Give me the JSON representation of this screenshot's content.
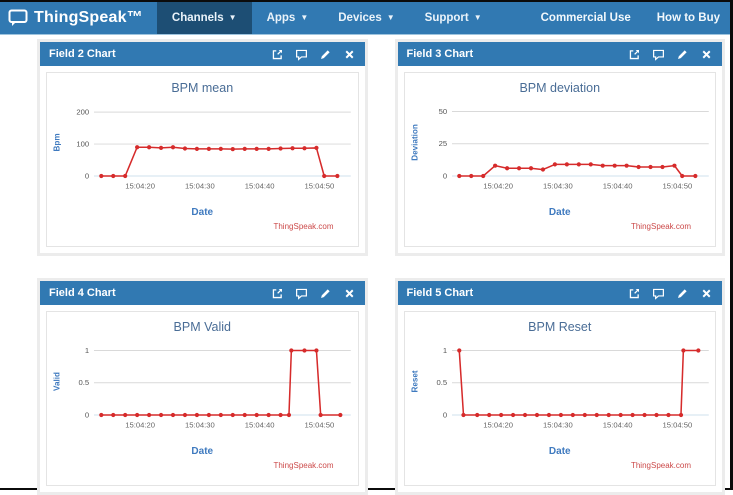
{
  "navbar": {
    "brand": "ThingSpeak™",
    "items": [
      {
        "label": "Channels",
        "active": true
      },
      {
        "label": "Apps",
        "active": false
      },
      {
        "label": "Devices",
        "active": false
      },
      {
        "label": "Support",
        "active": false
      }
    ],
    "right_items": [
      {
        "label": "Commercial Use"
      },
      {
        "label": "How to Buy"
      }
    ]
  },
  "panels": [
    {
      "header": "Field 2 Chart"
    },
    {
      "header": "Field 3 Chart"
    },
    {
      "header": "Field 4 Chart"
    },
    {
      "header": "Field 5 Chart"
    }
  ],
  "colors": {
    "navbar_bg": "#3179b2",
    "navbar_active_bg": "#1d4e74",
    "panel_header_bg": "#3179b2",
    "series_red": "#d62b2b",
    "title_blue": "#4a6d96",
    "axis_label_blue": "#3f7abf",
    "gridline_gray": "#d9d9d9"
  },
  "chart_data": [
    {
      "type": "line",
      "title": "BPM mean",
      "xlabel": "Date",
      "ylabel": "Bpm",
      "watermark": "ThingSpeak.com",
      "color": "#d62b2b",
      "xlim": [
        12.6,
        54.6
      ],
      "ylim": [
        0,
        210
      ],
      "y_ticks": [
        {
          "v": 0,
          "label": "0"
        },
        {
          "v": 100,
          "label": "100"
        },
        {
          "v": 200,
          "label": "200"
        }
      ],
      "x_ticks": [
        {
          "v": 20,
          "label": "15:04:20"
        },
        {
          "v": 30,
          "label": "15:04:30"
        },
        {
          "v": 40,
          "label": "15:04:40"
        },
        {
          "v": 50,
          "label": "15:04:50"
        }
      ],
      "x": [
        13.5,
        15.5,
        17.5,
        19.5,
        21.5,
        23.5,
        25.5,
        27.5,
        29.5,
        31.5,
        33.5,
        35.5,
        37.5,
        39.5,
        41.5,
        43.5,
        45.5,
        47.5,
        49.5,
        50.8,
        53
      ],
      "y": [
        0,
        0,
        0,
        90,
        90,
        88,
        90,
        86,
        85,
        85,
        85,
        84,
        85,
        85,
        85,
        86,
        87,
        87,
        88,
        0,
        0
      ]
    },
    {
      "type": "line",
      "title": "BPM deviation",
      "xlabel": "Date",
      "ylabel": "Deviation",
      "watermark": "ThingSpeak.com",
      "color": "#d62b2b",
      "xlim": [
        12.6,
        54.6
      ],
      "ylim": [
        0,
        52
      ],
      "y_ticks": [
        {
          "v": 0,
          "label": "0"
        },
        {
          "v": 25,
          "label": "25"
        },
        {
          "v": 50,
          "label": "50"
        }
      ],
      "x_ticks": [
        {
          "v": 20,
          "label": "15:04:20"
        },
        {
          "v": 30,
          "label": "15:04:30"
        },
        {
          "v": 40,
          "label": "15:04:40"
        },
        {
          "v": 50,
          "label": "15:04:50"
        }
      ],
      "x": [
        13.5,
        15.5,
        17.5,
        19.5,
        21.5,
        23.5,
        25.5,
        27.5,
        29.5,
        31.5,
        33.5,
        35.5,
        37.5,
        39.5,
        41.5,
        43.5,
        45.5,
        47.5,
        49.5,
        50.8,
        53
      ],
      "y": [
        0,
        0,
        0,
        8,
        6,
        6,
        6,
        5,
        9,
        9,
        9,
        9,
        8,
        8,
        8,
        7,
        7,
        7,
        8,
        0,
        0
      ]
    },
    {
      "type": "line",
      "title": "BPM Valid",
      "xlabel": "Date",
      "ylabel": "Valid",
      "watermark": "ThingSpeak.com",
      "color": "#d62b2b",
      "xlim": [
        12.6,
        54.6
      ],
      "ylim": [
        0,
        1.04
      ],
      "y_ticks": [
        {
          "v": 0,
          "label": "0"
        },
        {
          "v": 0.5,
          "label": "0.5"
        },
        {
          "v": 1,
          "label": "1"
        }
      ],
      "x_ticks": [
        {
          "v": 20,
          "label": "15:04:20"
        },
        {
          "v": 30,
          "label": "15:04:30"
        },
        {
          "v": 40,
          "label": "15:04:40"
        },
        {
          "v": 50,
          "label": "15:04:50"
        }
      ],
      "x": [
        13.5,
        15.5,
        17.5,
        19.5,
        21.5,
        23.5,
        25.5,
        27.5,
        29.5,
        31.5,
        33.5,
        35.5,
        37.5,
        39.5,
        41.5,
        43.5,
        44.9,
        45.3,
        47.5,
        49.5,
        50.2,
        53.5
      ],
      "y": [
        0,
        0,
        0,
        0,
        0,
        0,
        0,
        0,
        0,
        0,
        0,
        0,
        0,
        0,
        0,
        0,
        0,
        1,
        1,
        1,
        0,
        0
      ]
    },
    {
      "type": "line",
      "title": "BPM Reset",
      "xlabel": "Date",
      "ylabel": "Reset",
      "watermark": "ThingSpeak.com",
      "color": "#d62b2b",
      "xlim": [
        12.6,
        54.6
      ],
      "ylim": [
        0,
        1.04
      ],
      "y_ticks": [
        {
          "v": 0,
          "label": "0"
        },
        {
          "v": 0.5,
          "label": "0.5"
        },
        {
          "v": 1,
          "label": "1"
        }
      ],
      "x_ticks": [
        {
          "v": 20,
          "label": "15:04:20"
        },
        {
          "v": 30,
          "label": "15:04:30"
        },
        {
          "v": 40,
          "label": "15:04:40"
        },
        {
          "v": 50,
          "label": "15:04:50"
        }
      ],
      "x": [
        13.5,
        14.2,
        16.5,
        18.5,
        20.5,
        22.5,
        24.5,
        26.5,
        28.5,
        30.5,
        32.5,
        34.5,
        36.5,
        38.5,
        40.5,
        42.5,
        44.5,
        46.5,
        48.5,
        50.6,
        51.0,
        53.5
      ],
      "y": [
        1,
        0,
        0,
        0,
        0,
        0,
        0,
        0,
        0,
        0,
        0,
        0,
        0,
        0,
        0,
        0,
        0,
        0,
        0,
        0,
        1,
        1
      ]
    }
  ]
}
